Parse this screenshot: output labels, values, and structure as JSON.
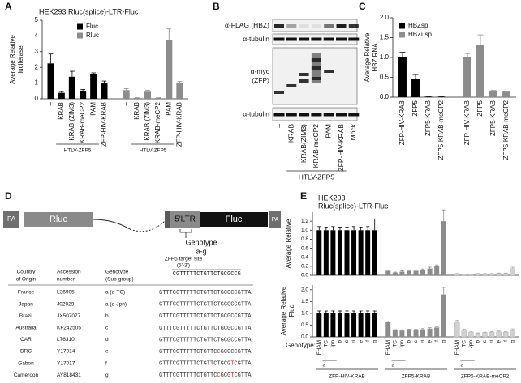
{
  "chart_data": [
    {
      "type": "bar",
      "panel": "A",
      "title": "HEK293 Rluc(splice)-LTR-Fluc",
      "ylabel": [
        "Average Relative",
        "luciferase"
      ],
      "categories": [
        "–",
        "KRAB",
        "KRAB (ZIM3)",
        "KRAB-meCP2",
        "PAM",
        "ZFP-HIV-KRAB"
      ],
      "group_label": "HTLV-ZFP5",
      "series": [
        {
          "name": "Fluc",
          "color": "#000000",
          "values": [
            2.25,
            0.38,
            1.4,
            0.52,
            1.57,
            1.0
          ],
          "errors": [
            0.6,
            0.08,
            0.35,
            0.07,
            0.08,
            0.13
          ]
        },
        {
          "name": "Rluc",
          "color": "#8c8c8c",
          "values": [
            0.55,
            0.05,
            0.45,
            0.05,
            3.75,
            1.0
          ],
          "errors": [
            0.1,
            0.02,
            0.1,
            0.02,
            0.7,
            0.1
          ]
        }
      ],
      "ylim": [
        0,
        5
      ],
      "yticks": [
        0,
        1,
        2,
        3,
        4,
        5
      ]
    },
    {
      "type": "bar",
      "panel": "C",
      "ylabel": [
        "Average Relative",
        "HBZ RNA"
      ],
      "categories": [
        "ZFP-HIV-KRAB",
        "ZFP5",
        "ZFP5-KRAB",
        "ZFP5-KRAB-meCP2"
      ],
      "series": [
        {
          "name": "HBZsp",
          "color": "#000000",
          "values": [
            1.0,
            0.45,
            0.01,
            0.01
          ],
          "errors": [
            0.13,
            0.12,
            0,
            0
          ]
        },
        {
          "name": "HBZusp",
          "color": "#8c8c8c",
          "values": [
            1.0,
            1.32,
            0.16,
            0.14
          ],
          "errors": [
            0.1,
            0.25,
            0.01,
            0.01
          ]
        }
      ],
      "ylim": [
        0,
        2
      ],
      "yticks": [
        {
          "value": 0,
          "label": "0.0"
        },
        0.5,
        {
          "value": 1,
          "label": "1.0"
        },
        1.5,
        {
          "value": 2,
          "label": "2.0"
        }
      ]
    },
    {
      "type": "bar",
      "panel": "E",
      "title": [
        "HEK293",
        "Rluc(splice)-LTR-Fluc"
      ],
      "ylabel": [
        "Average Relative"
      ],
      "series": [
        {
          "color": "#000000",
          "values": [
            1,
            1,
            1,
            1,
            1,
            1,
            1,
            1,
            1
          ],
          "errors": [
            0.08,
            0.07,
            0.08,
            0.07,
            0.07,
            0.08,
            0.07,
            0.08,
            0.25
          ]
        },
        {
          "color": "#8c8c8c",
          "values": [
            0.1,
            0.06,
            0.08,
            0.1,
            0.1,
            0.12,
            0.15,
            0.2,
            1.2
          ],
          "errors": [
            0.02,
            0.01,
            0.02,
            0.02,
            0.02,
            0.02,
            0.03,
            0.03,
            0.25
          ]
        },
        {
          "color": "#d0d0d0",
          "values": [
            0.03,
            0.02,
            0.02,
            0.03,
            0.03,
            0.03,
            0.04,
            0.04,
            0.15
          ],
          "errors": [
            0.01,
            0.01,
            0.01,
            0.01,
            0.01,
            0.01,
            0.01,
            0.01,
            0.03
          ]
        }
      ],
      "ylim": [
        0,
        1.4
      ],
      "yticks": [
        {
          "value": 0,
          "label": "0.0"
        },
        0.2,
        0.4,
        0.6,
        0.8,
        {
          "value": 1,
          "label": "1.0"
        },
        1.2
      ]
    },
    {
      "type": "bar",
      "ylabel": [
        "Average Relative",
        "Fluc"
      ],
      "xlabel": "Genotype:",
      "subgroup_label": "a",
      "categories": [
        "FHAM",
        "TC",
        "Jpn",
        "b",
        "c",
        "d",
        "e",
        "f",
        "g"
      ],
      "series": [
        {
          "name": "ZFP-HIV-KRAB",
          "color": "#000000",
          "values": [
            1,
            1,
            1,
            1,
            1,
            1,
            1,
            1,
            1
          ],
          "errors": [
            0.1,
            0.1,
            0.1,
            0.1,
            0.1,
            0.1,
            0.1,
            0.1,
            0.1
          ]
        },
        {
          "name": "ZFP5-KRAB",
          "color": "#8c8c8c",
          "values": [
            0.62,
            0.28,
            0.27,
            0.3,
            0.3,
            0.32,
            0.35,
            0.4,
            1.8
          ],
          "errors": [
            0.05,
            0.03,
            0.03,
            0.03,
            0.03,
            0.03,
            0.04,
            0.04,
            0.3
          ]
        },
        {
          "name": "ZFP5-KRAB-meCP2",
          "color": "#d0d0d0",
          "values": [
            0.62,
            0.3,
            0.2,
            0.15,
            0.18,
            0.2,
            0.22,
            0.2,
            0.3
          ],
          "errors": [
            0.08,
            0.03,
            0.03,
            0.02,
            0.02,
            0.02,
            0.03,
            0.02,
            0.04
          ]
        }
      ],
      "ylim": [
        0,
        2.2
      ],
      "yticks": [
        {
          "value": 0,
          "label": "0.0"
        },
        0.5,
        {
          "value": 1,
          "label": "1.0"
        },
        1.5,
        {
          "value": 2,
          "label": "2.0"
        }
      ]
    }
  ],
  "blot": {
    "panel": "B",
    "antibodies": [
      [
        "α-FLAG (HBZ)"
      ],
      [
        "α-tubulin"
      ],
      [
        "α-myc",
        "(ZFP)"
      ],
      [
        "α-tubulin"
      ]
    ],
    "lanes": [
      "–",
      "KRAB",
      "KRAB(ZIM3)",
      "KRAB-meCP2",
      "PAM",
      "ZFP-HIV-KRAB",
      "Mock"
    ],
    "group_label": "HTLV-ZFP5"
  },
  "diagram": {
    "panel": "D",
    "pa": "PA",
    "rluc": "Rluc",
    "ltr": "5'LTR",
    "fluc": "Fluc",
    "genotype": [
      "Genotype",
      "a-g"
    ]
  },
  "table": {
    "header": {
      "columns": [
        [
          "Country",
          "of Origin"
        ],
        [
          "Accession",
          "number"
        ],
        [
          "Genotype",
          "(Sub-group)"
        ]
      ],
      "target_title": "ZFP5 target site",
      "target_dir": "(5'-3')",
      "target_seq": "CGTTTTTCTGTTCTGCGCCG"
    },
    "rows": [
      {
        "country": "France",
        "accession": "L36905",
        "genotype": "a (a-TC)",
        "sequence": [
          {
            "text": "GTTTCGTTTTTCTGTTCTGCGCCGTTA",
            "color": "#333333"
          }
        ]
      },
      {
        "country": "Japan",
        "accession": "J02029",
        "genotype": "a (a-Jpn)",
        "sequence": [
          {
            "text": "GTTTCGTTTTTCTGTTCTGCGCCGTTA",
            "color": "#333333"
          }
        ]
      },
      {
        "country": "Brazil",
        "accession": "JX507077",
        "genotype": "b",
        "sequence": [
          {
            "text": "GTTTCGTTTTTCTGTTCTGCGCCGTTA",
            "color": "#333333"
          }
        ]
      },
      {
        "country": "Australia",
        "accession": "KF242505",
        "genotype": "c",
        "sequence": [
          {
            "text": "GTTTCGTTTTTCTGTTCTGCGCCGTTA",
            "color": "#333333"
          }
        ]
      },
      {
        "country": "CAR",
        "accession": "L76310",
        "genotype": "d",
        "sequence": [
          {
            "text": "GTTTCGTTTTTCTGTTCTGCGCCGTTA",
            "color": "#333333"
          }
        ]
      },
      {
        "country": "DRC",
        "accession": "Y17014",
        "genotype": "e",
        "sequence": [
          {
            "text": "GTTTCGTTTTTCTGTTC",
            "color": "#333333"
          },
          {
            "text": "C",
            "color": "#d62020"
          },
          {
            "text": "GCGCCGTTA",
            "color": "#333333"
          }
        ]
      },
      {
        "country": "Gabon",
        "accession": "Y17017",
        "genotype": "f",
        "sequence": [
          {
            "text": "GTTTCGTTTTTCTGTTCTGCG",
            "color": "#333333"
          },
          {
            "text": "T",
            "color": "#d62020"
          },
          {
            "text": "CGTTA",
            "color": "#333333"
          }
        ]
      },
      {
        "country": "Cameroon",
        "accession": "AY818431",
        "genotype": "g",
        "sequence": [
          {
            "text": "GTTTCGTTTTTCTGTTC",
            "color": "#333333"
          },
          {
            "text": "C",
            "color": "#d62020"
          },
          {
            "text": "GCG",
            "color": "#333333"
          },
          {
            "text": "T",
            "color": "#d62020"
          },
          {
            "text": "CGTTA",
            "color": "#333333"
          }
        ]
      }
    ]
  }
}
